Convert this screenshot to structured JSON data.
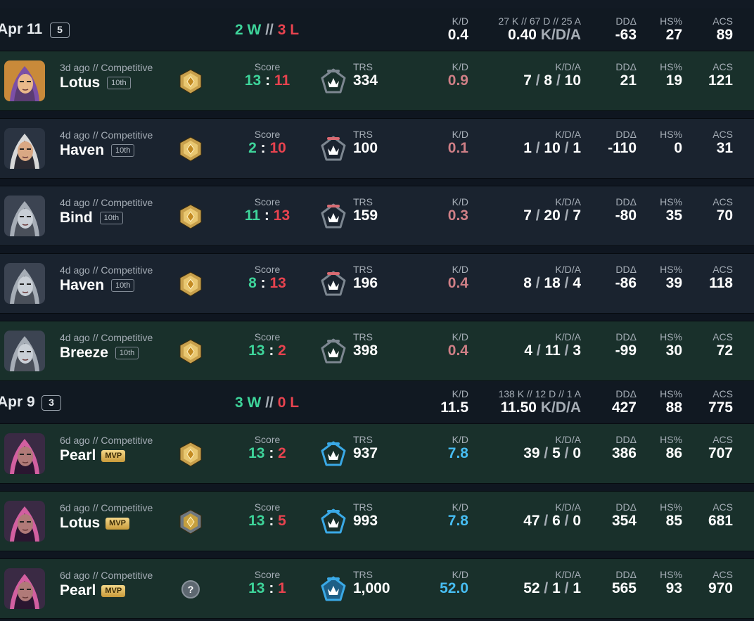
{
  "groups": [
    {
      "date": "Apr 11",
      "count": "5",
      "wins": "2 W",
      "losses": "3 L",
      "separator": "//",
      "summary": {
        "kd_label": "K/D",
        "kd": "0.4",
        "kda_label": "27 K // 67 D // 25 A",
        "kda": "0.40",
        "kda_suffix": "K/D/A",
        "dd_label": "DDΔ",
        "dd": "-63",
        "hs_label": "HS%",
        "hs": "27",
        "acs_label": "ACS",
        "acs": "89"
      },
      "matches": [
        {
          "result": "won",
          "agent": "agent-hooded",
          "meta": "3d ago // Competitive",
          "map": "Lotus",
          "badge": "10th",
          "badge_type": "place",
          "rank": "gold",
          "score_label": "Score",
          "score_us": "13",
          "score_them": "11",
          "score_sep": ":",
          "trs_label": "TRS",
          "trs": "334",
          "trs_tier": "gray",
          "kd_label": "K/D",
          "kd": "0.9",
          "kd_tone": "bad",
          "kda_label": "K/D/A",
          "k": "7",
          "d": "8",
          "a": "10",
          "dd_label": "DDΔ",
          "dd": "21",
          "hs_label": "HS%",
          "hs": "19",
          "acs_label": "ACS",
          "acs": "121"
        },
        {
          "result": "lost",
          "agent": "agent-headband",
          "meta": "4d ago // Competitive",
          "map": "Haven",
          "badge": "10th",
          "badge_type": "place",
          "rank": "gold",
          "score_label": "Score",
          "score_us": "2",
          "score_them": "10",
          "score_sep": ":",
          "trs_label": "TRS",
          "trs": "100",
          "trs_tier": "red",
          "kd_label": "K/D",
          "kd": "0.1",
          "kd_tone": "bad",
          "kda_label": "K/D/A",
          "k": "1",
          "d": "10",
          "a": "1",
          "dd_label": "DDΔ",
          "dd": "-110",
          "hs_label": "HS%",
          "hs": "0",
          "acs_label": "ACS",
          "acs": "31"
        },
        {
          "result": "lost",
          "agent": "agent-gray",
          "meta": "4d ago // Competitive",
          "map": "Bind",
          "badge": "10th",
          "badge_type": "place",
          "rank": "gold",
          "score_label": "Score",
          "score_us": "11",
          "score_them": "13",
          "score_sep": ":",
          "trs_label": "TRS",
          "trs": "159",
          "trs_tier": "red",
          "kd_label": "K/D",
          "kd": "0.3",
          "kd_tone": "bad",
          "kda_label": "K/D/A",
          "k": "7",
          "d": "20",
          "a": "7",
          "dd_label": "DDΔ",
          "dd": "-80",
          "hs_label": "HS%",
          "hs": "35",
          "acs_label": "ACS",
          "acs": "70"
        },
        {
          "result": "lost",
          "agent": "agent-gray",
          "meta": "4d ago // Competitive",
          "map": "Haven",
          "badge": "10th",
          "badge_type": "place",
          "rank": "gold",
          "score_label": "Score",
          "score_us": "8",
          "score_them": "13",
          "score_sep": ":",
          "trs_label": "TRS",
          "trs": "196",
          "trs_tier": "red",
          "kd_label": "K/D",
          "kd": "0.4",
          "kd_tone": "bad",
          "kda_label": "K/D/A",
          "k": "8",
          "d": "18",
          "a": "4",
          "dd_label": "DDΔ",
          "dd": "-86",
          "hs_label": "HS%",
          "hs": "39",
          "acs_label": "ACS",
          "acs": "118"
        },
        {
          "result": "won",
          "agent": "agent-gray",
          "meta": "4d ago // Competitive",
          "map": "Breeze",
          "badge": "10th",
          "badge_type": "place",
          "rank": "gold",
          "score_label": "Score",
          "score_us": "13",
          "score_them": "2",
          "score_sep": ":",
          "trs_label": "TRS",
          "trs": "398",
          "trs_tier": "gray",
          "kd_label": "K/D",
          "kd": "0.4",
          "kd_tone": "bad",
          "kda_label": "K/D/A",
          "k": "4",
          "d": "11",
          "a": "3",
          "dd_label": "DDΔ",
          "dd": "-99",
          "hs_label": "HS%",
          "hs": "30",
          "acs_label": "ACS",
          "acs": "72"
        }
      ]
    },
    {
      "date": "Apr 9",
      "count": "3",
      "wins": "3 W",
      "losses": "0 L",
      "separator": "//",
      "summary": {
        "kd_label": "K/D",
        "kd": "11.5",
        "kda_label": "138 K // 12 D // 1 A",
        "kda": "11.50",
        "kda_suffix": "K/D/A",
        "dd_label": "DDΔ",
        "dd": "427",
        "hs_label": "HS%",
        "hs": "88",
        "acs_label": "ACS",
        "acs": "775"
      },
      "matches": [
        {
          "result": "won",
          "agent": "agent-purple",
          "meta": "6d ago // Competitive",
          "map": "Pearl",
          "badge": "MVP",
          "badge_type": "mvp",
          "rank": "gold",
          "score_label": "Score",
          "score_us": "13",
          "score_them": "2",
          "score_sep": ":",
          "trs_label": "TRS",
          "trs": "937",
          "trs_tier": "blue",
          "kd_label": "K/D",
          "kd": "7.8",
          "kd_tone": "good",
          "kda_label": "K/D/A",
          "k": "39",
          "d": "5",
          "a": "0",
          "dd_label": "DDΔ",
          "dd": "386",
          "hs_label": "HS%",
          "hs": "86",
          "acs_label": "ACS",
          "acs": "707"
        },
        {
          "result": "won",
          "agent": "agent-purple",
          "meta": "6d ago // Competitive",
          "map": "Lotus",
          "badge": "MVP",
          "badge_type": "mvp",
          "rank": "silver",
          "score_label": "Score",
          "score_us": "13",
          "score_them": "5",
          "score_sep": ":",
          "trs_label": "TRS",
          "trs": "993",
          "trs_tier": "blue",
          "kd_label": "K/D",
          "kd": "7.8",
          "kd_tone": "good",
          "kda_label": "K/D/A",
          "k": "47",
          "d": "6",
          "a": "0",
          "dd_label": "DDΔ",
          "dd": "354",
          "hs_label": "HS%",
          "hs": "85",
          "acs_label": "ACS",
          "acs": "681"
        },
        {
          "result": "won",
          "agent": "agent-purple",
          "meta": "6d ago // Competitive",
          "map": "Pearl",
          "badge": "MVP",
          "badge_type": "mvp",
          "rank": "unknown",
          "rank_symbol": "?",
          "score_label": "Score",
          "score_us": "13",
          "score_them": "1",
          "score_sep": ":",
          "trs_label": "TRS",
          "trs": "1,000",
          "trs_tier": "blue-max",
          "kd_label": "K/D",
          "kd": "52.0",
          "kd_tone": "good",
          "kda_label": "K/D/A",
          "k": "52",
          "d": "1",
          "a": "1",
          "dd_label": "DDΔ",
          "dd": "565",
          "hs_label": "HS%",
          "hs": "93",
          "acs_label": "ACS",
          "acs": "970"
        }
      ]
    }
  ],
  "colors": {
    "win": "#3ed49a",
    "loss": "#e8434f",
    "kd_bad": "#cf7f86",
    "kd_good": "#47bdf2",
    "row_won": "#19302b",
    "row_lost": "#1a232f"
  }
}
